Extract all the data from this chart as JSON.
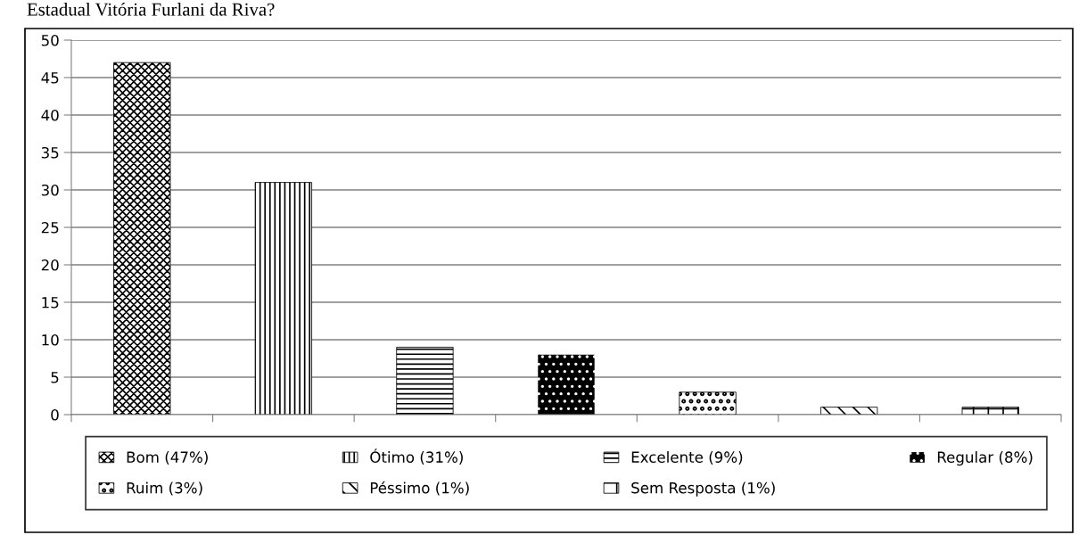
{
  "chart_data": {
    "type": "bar",
    "title": "Estadual Vitória Furlani da Riva?",
    "categories": [
      null,
      null,
      null,
      null,
      null,
      null,
      null
    ],
    "series": [
      {
        "name": "Bom (47%)",
        "color": "#000000",
        "values": [
          47,
          null,
          null,
          null,
          null,
          null,
          null
        ]
      },
      {
        "name": "Ótimo (31%)",
        "color": "#000000",
        "values": [
          null,
          31,
          null,
          null,
          null,
          null,
          null
        ]
      },
      {
        "name": "Excelente (9%)",
        "color": "#000000",
        "values": [
          null,
          null,
          9,
          null,
          null,
          null,
          null
        ]
      },
      {
        "name": "Regular (8%)",
        "color": "#000000",
        "values": [
          null,
          null,
          null,
          8,
          null,
          null,
          null
        ]
      },
      {
        "name": "Ruim (3%)",
        "color": "#000000",
        "values": [
          null,
          null,
          null,
          null,
          3,
          null,
          null
        ]
      },
      {
        "name": "Péssimo (1%)",
        "color": "#000000",
        "values": [
          null,
          null,
          null,
          null,
          null,
          1,
          null
        ]
      },
      {
        "name": "Sem Resposta (1%)",
        "color": "#000000",
        "values": [
          null,
          null,
          null,
          null,
          null,
          null,
          1
        ]
      }
    ],
    "ylim": [
      0,
      50
    ],
    "yticks": [
      0,
      5,
      10,
      15,
      20,
      25,
      30,
      35,
      40,
      45,
      50
    ],
    "grid": "y",
    "legend": "bottom"
  }
}
